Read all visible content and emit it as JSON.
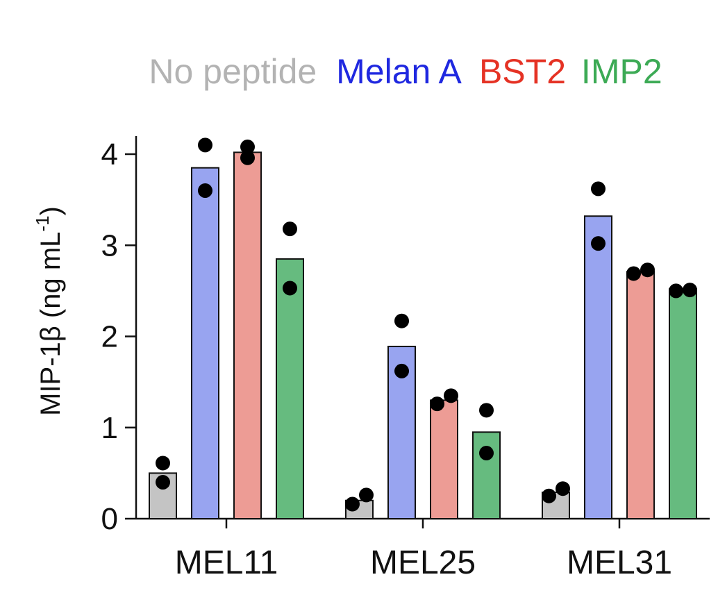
{
  "chart_data": {
    "type": "bar",
    "title": "",
    "xlabel": "",
    "ylabel": "MIP-1β (ng mL",
    "ylabel_superscript": "-1",
    "ylabel_suffix": ")",
    "ylim": [
      0,
      4.2
    ],
    "yticks": [
      "0",
      "1",
      "2",
      "3",
      "4"
    ],
    "legend_placement": "top",
    "categories": [
      "MEL11",
      "MEL25",
      "MEL31"
    ],
    "series": [
      {
        "name": "No peptide",
        "color": "#c4c4c4",
        "legend_color": "#b3b3b3",
        "values": [
          0.5,
          0.2,
          0.29
        ],
        "points": [
          [
            0.61,
            0.4
          ],
          [
            0.16,
            0.26
          ],
          [
            0.25,
            0.33
          ]
        ]
      },
      {
        "name": "Melan A",
        "color": "#98a4f0",
        "legend_color": "#1f28e0",
        "values": [
          3.85,
          1.89,
          3.32
        ],
        "points": [
          [
            4.1,
            3.6
          ],
          [
            2.17,
            1.62
          ],
          [
            3.62,
            3.02
          ]
        ]
      },
      {
        "name": "BST2",
        "color": "#ed9c95",
        "legend_color": "#e53224",
        "values": [
          4.02,
          1.3,
          2.71
        ],
        "points": [
          [
            3.96,
            4.08
          ],
          [
            1.26,
            1.35
          ],
          [
            2.69,
            2.73
          ]
        ]
      },
      {
        "name": "IMP2",
        "color": "#66bb7f",
        "legend_color": "#3caa55",
        "values": [
          2.85,
          0.95,
          2.52
        ],
        "points": [
          [
            3.18,
            2.53
          ],
          [
            1.19,
            0.72
          ],
          [
            2.5,
            2.51
          ]
        ]
      }
    ]
  }
}
